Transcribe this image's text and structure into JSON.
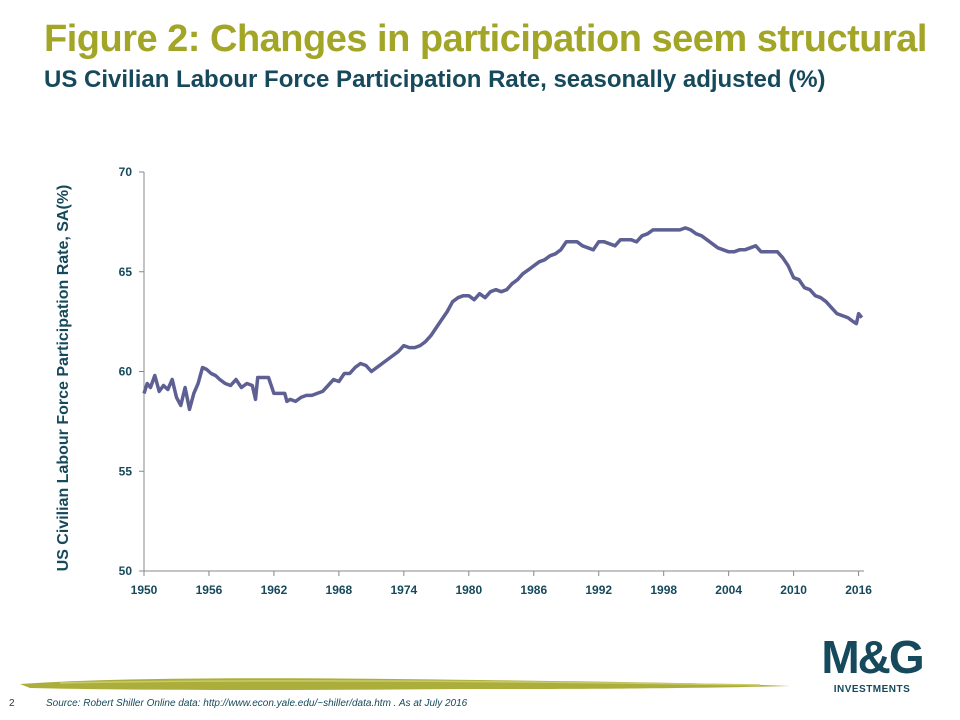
{
  "slide": {
    "title": "Figure 2: Changes in participation seem structural",
    "subtitle": "US Civilian Labour Force Participation Rate, seasonally adjusted (%)",
    "page_number": "2",
    "source": "Source: Robert Shiller Online data:  http://www.econ.yale.edu/~shiller/data.htm . As at July 2016",
    "logo": {
      "mark": "M&G",
      "sub": "INVESTMENTS"
    },
    "colors": {
      "title": "#a3a526",
      "navy": "#15495b",
      "line": "#5e5f93",
      "swoosh": "#a3a526"
    }
  },
  "chart_data": {
    "type": "line",
    "title": "",
    "xlabel": "",
    "ylabel": "US Civilian Labour Force Participation Rate, SA(%)",
    "xlim": [
      1950,
      2016.5
    ],
    "ylim": [
      50,
      70
    ],
    "x_ticks": [
      "1950",
      "1956",
      "1962",
      "1968",
      "1974",
      "1980",
      "1986",
      "1992",
      "1998",
      "2004",
      "2010",
      "2016"
    ],
    "y_ticks": [
      "50",
      "55",
      "60",
      "65",
      "70"
    ],
    "grid": false,
    "legend": "none",
    "series": [
      {
        "name": "",
        "x": [
          1950.0,
          1950.3,
          1950.6,
          1951.0,
          1951.4,
          1951.8,
          1952.2,
          1952.6,
          1953.0,
          1953.4,
          1953.8,
          1954.2,
          1954.6,
          1955.0,
          1955.4,
          1955.8,
          1956.2,
          1956.6,
          1957.0,
          1957.5,
          1958.0,
          1958.5,
          1959.0,
          1959.5,
          1960.0,
          1960.3,
          1960.5,
          1961.0,
          1961.5,
          1962.0,
          1962.5,
          1963.0,
          1963.2,
          1963.5,
          1964.0,
          1964.5,
          1965.0,
          1965.5,
          1966.0,
          1966.5,
          1967.0,
          1967.5,
          1968.0,
          1968.5,
          1969.0,
          1969.5,
          1970.0,
          1970.5,
          1971.0,
          1971.5,
          1972.0,
          1972.5,
          1973.0,
          1973.5,
          1974.0,
          1974.5,
          1975.0,
          1975.5,
          1976.0,
          1976.5,
          1977.0,
          1977.5,
          1978.0,
          1978.5,
          1979.0,
          1979.5,
          1980.0,
          1980.5,
          1981.0,
          1981.5,
          1982.0,
          1982.5,
          1983.0,
          1983.5,
          1984.0,
          1984.5,
          1985.0,
          1985.5,
          1986.0,
          1986.5,
          1987.0,
          1987.5,
          1988.0,
          1988.5,
          1989.0,
          1989.5,
          1990.0,
          1990.5,
          1991.0,
          1991.5,
          1992.0,
          1992.5,
          1993.0,
          1993.5,
          1994.0,
          1994.5,
          1995.0,
          1995.5,
          1996.0,
          1996.5,
          1997.0,
          1997.5,
          1998.0,
          1998.5,
          1999.0,
          1999.5,
          2000.0,
          2000.5,
          2001.0,
          2001.5,
          2002.0,
          2002.5,
          2003.0,
          2003.5,
          2004.0,
          2004.5,
          2005.0,
          2005.5,
          2006.0,
          2006.5,
          2007.0,
          2007.5,
          2008.0,
          2008.5,
          2009.0,
          2009.5,
          2010.0,
          2010.5,
          2011.0,
          2011.5,
          2012.0,
          2012.5,
          2013.0,
          2013.5,
          2014.0,
          2014.5,
          2015.0,
          2015.5,
          2015.8,
          2016.0,
          2016.3
        ],
        "values": [
          58.9,
          59.4,
          59.2,
          59.8,
          59.0,
          59.3,
          59.1,
          59.6,
          58.7,
          58.3,
          59.2,
          58.1,
          58.9,
          59.4,
          60.2,
          60.1,
          59.9,
          59.8,
          59.6,
          59.4,
          59.3,
          59.6,
          59.2,
          59.4,
          59.3,
          58.6,
          59.7,
          59.7,
          59.7,
          58.9,
          58.9,
          58.9,
          58.5,
          58.6,
          58.5,
          58.7,
          58.8,
          58.8,
          58.9,
          59.0,
          59.3,
          59.6,
          59.5,
          59.9,
          59.9,
          60.2,
          60.4,
          60.3,
          60.0,
          60.2,
          60.4,
          60.6,
          60.8,
          61.0,
          61.3,
          61.2,
          61.2,
          61.3,
          61.5,
          61.8,
          62.2,
          62.6,
          63.0,
          63.5,
          63.7,
          63.8,
          63.8,
          63.6,
          63.9,
          63.7,
          64.0,
          64.1,
          64.0,
          64.1,
          64.4,
          64.6,
          64.9,
          65.1,
          65.3,
          65.5,
          65.6,
          65.8,
          65.9,
          66.1,
          66.5,
          66.5,
          66.5,
          66.3,
          66.2,
          66.1,
          66.5,
          66.5,
          66.4,
          66.3,
          66.6,
          66.6,
          66.6,
          66.5,
          66.8,
          66.9,
          67.1,
          67.1,
          67.1,
          67.1,
          67.1,
          67.1,
          67.2,
          67.1,
          66.9,
          66.8,
          66.6,
          66.4,
          66.2,
          66.1,
          66.0,
          66.0,
          66.1,
          66.1,
          66.2,
          66.3,
          66.0,
          66.0,
          66.0,
          66.0,
          65.7,
          65.3,
          64.7,
          64.6,
          64.2,
          64.1,
          63.8,
          63.7,
          63.5,
          63.2,
          62.9,
          62.8,
          62.7,
          62.5,
          62.4,
          62.9,
          62.7
        ]
      }
    ]
  }
}
